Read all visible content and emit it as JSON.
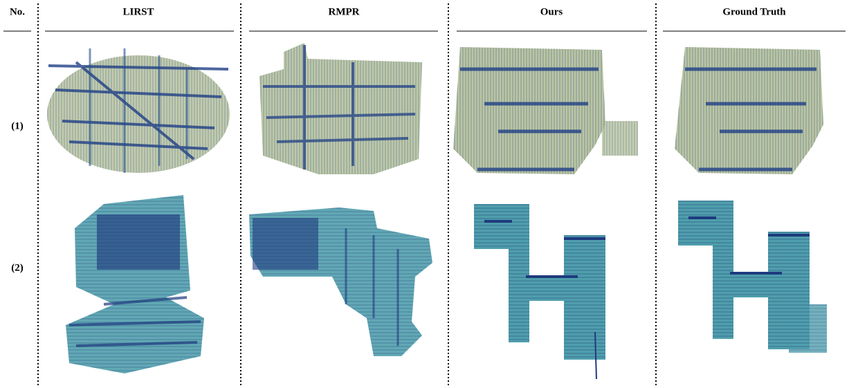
{
  "header": {
    "columns": [
      "No.",
      "LIRST",
      "RMPR",
      "Ours",
      "Ground Truth"
    ]
  },
  "rows": [
    {
      "label": "(1)"
    },
    {
      "label": "(2)"
    }
  ]
}
